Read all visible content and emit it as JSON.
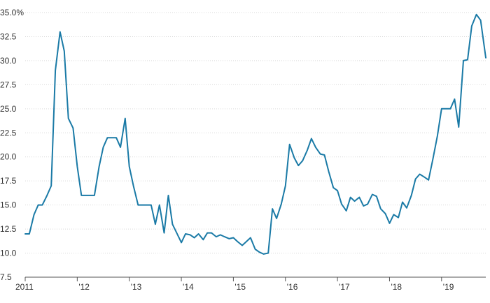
{
  "chart_data": {
    "type": "line",
    "title": "",
    "xlabel": "",
    "ylabel": "",
    "ylim": [
      7.5,
      35.0
    ],
    "grid": true,
    "y_ticks": [
      {
        "value": 35.0,
        "label": "35.0%"
      },
      {
        "value": 32.5,
        "label": "32.5"
      },
      {
        "value": 30.0,
        "label": "30.0"
      },
      {
        "value": 27.5,
        "label": "27.5"
      },
      {
        "value": 25.0,
        "label": "25.0"
      },
      {
        "value": 22.5,
        "label": "22.5"
      },
      {
        "value": 20.0,
        "label": "20.0"
      },
      {
        "value": 17.5,
        "label": "17.5"
      },
      {
        "value": 15.0,
        "label": "15.0"
      },
      {
        "value": 12.5,
        "label": "12.5"
      },
      {
        "value": 10.0,
        "label": "10.0"
      },
      {
        "value": 7.5,
        "label": "7.5"
      }
    ],
    "x_ticks": [
      {
        "value": 2011,
        "label": "2011"
      },
      {
        "value": 2012,
        "label": "'12"
      },
      {
        "value": 2013,
        "label": "'13"
      },
      {
        "value": 2014,
        "label": "'14"
      },
      {
        "value": 2015,
        "label": "'15"
      },
      {
        "value": 2016,
        "label": "'16"
      },
      {
        "value": 2017,
        "label": "'17"
      },
      {
        "value": 2018,
        "label": "'18"
      },
      {
        "value": 2019,
        "label": "'19"
      }
    ],
    "xlim": [
      2011,
      2019.85
    ],
    "series": [
      {
        "color": "#1a7aa6",
        "points": [
          [
            2011.0,
            12.0
          ],
          [
            2011.08,
            12.0
          ],
          [
            2011.17,
            14.0
          ],
          [
            2011.25,
            15.0
          ],
          [
            2011.33,
            15.0
          ],
          [
            2011.42,
            16.0
          ],
          [
            2011.5,
            17.0
          ],
          [
            2011.58,
            29.0
          ],
          [
            2011.67,
            33.0
          ],
          [
            2011.75,
            31.0
          ],
          [
            2011.83,
            24.0
          ],
          [
            2011.92,
            23.0
          ],
          [
            2012.0,
            19.0
          ],
          [
            2012.08,
            16.0
          ],
          [
            2012.17,
            16.0
          ],
          [
            2012.25,
            16.0
          ],
          [
            2012.33,
            16.0
          ],
          [
            2012.42,
            19.0
          ],
          [
            2012.5,
            21.0
          ],
          [
            2012.58,
            22.0
          ],
          [
            2012.67,
            22.0
          ],
          [
            2012.75,
            22.0
          ],
          [
            2012.83,
            21.0
          ],
          [
            2012.92,
            24.0
          ],
          [
            2013.0,
            19.0
          ],
          [
            2013.08,
            17.0
          ],
          [
            2013.17,
            15.0
          ],
          [
            2013.25,
            15.0
          ],
          [
            2013.33,
            15.0
          ],
          [
            2013.42,
            15.0
          ],
          [
            2013.5,
            13.0
          ],
          [
            2013.58,
            15.0
          ],
          [
            2013.67,
            12.1
          ],
          [
            2013.75,
            16.0
          ],
          [
            2013.83,
            13.0
          ],
          [
            2013.92,
            12.0
          ],
          [
            2014.0,
            11.1
          ],
          [
            2014.08,
            12.0
          ],
          [
            2014.17,
            11.9
          ],
          [
            2014.25,
            11.6
          ],
          [
            2014.33,
            12.0
          ],
          [
            2014.42,
            11.4
          ],
          [
            2014.5,
            12.1
          ],
          [
            2014.58,
            12.1
          ],
          [
            2014.67,
            11.7
          ],
          [
            2014.75,
            11.9
          ],
          [
            2014.83,
            11.7
          ],
          [
            2014.92,
            11.5
          ],
          [
            2015.0,
            11.6
          ],
          [
            2015.08,
            11.2
          ],
          [
            2015.17,
            10.8
          ],
          [
            2015.25,
            11.2
          ],
          [
            2015.33,
            11.6
          ],
          [
            2015.42,
            10.4
          ],
          [
            2015.5,
            10.1
          ],
          [
            2015.58,
            9.9
          ],
          [
            2015.67,
            10.0
          ],
          [
            2015.75,
            14.6
          ],
          [
            2015.83,
            13.6
          ],
          [
            2015.92,
            15.1
          ],
          [
            2016.0,
            17.0
          ],
          [
            2016.08,
            21.3
          ],
          [
            2016.17,
            19.9
          ],
          [
            2016.25,
            19.1
          ],
          [
            2016.33,
            19.6
          ],
          [
            2016.42,
            20.7
          ],
          [
            2016.5,
            21.9
          ],
          [
            2016.58,
            21.0
          ],
          [
            2016.67,
            20.3
          ],
          [
            2016.75,
            20.2
          ],
          [
            2016.83,
            18.5
          ],
          [
            2016.92,
            16.8
          ],
          [
            2017.0,
            16.5
          ],
          [
            2017.08,
            15.1
          ],
          [
            2017.17,
            14.4
          ],
          [
            2017.25,
            15.8
          ],
          [
            2017.33,
            15.4
          ],
          [
            2017.42,
            15.8
          ],
          [
            2017.5,
            14.9
          ],
          [
            2017.58,
            15.1
          ],
          [
            2017.67,
            16.1
          ],
          [
            2017.75,
            15.9
          ],
          [
            2017.83,
            14.6
          ],
          [
            2017.92,
            14.1
          ],
          [
            2018.0,
            13.1
          ],
          [
            2018.08,
            14.0
          ],
          [
            2018.17,
            13.7
          ],
          [
            2018.25,
            15.3
          ],
          [
            2018.33,
            14.7
          ],
          [
            2018.42,
            16.0
          ],
          [
            2018.5,
            17.7
          ],
          [
            2018.58,
            18.2
          ],
          [
            2018.67,
            17.9
          ],
          [
            2018.75,
            17.6
          ],
          [
            2018.83,
            19.7
          ],
          [
            2018.92,
            22.2
          ],
          [
            2019.0,
            25.0
          ],
          [
            2019.08,
            25.0
          ],
          [
            2019.17,
            25.0
          ],
          [
            2019.25,
            26.0
          ],
          [
            2019.33,
            23.1
          ],
          [
            2019.42,
            30.0
          ],
          [
            2019.5,
            30.1
          ],
          [
            2019.58,
            33.6
          ],
          [
            2019.67,
            34.8
          ],
          [
            2019.75,
            34.2
          ],
          [
            2019.85,
            30.3
          ]
        ]
      }
    ]
  }
}
